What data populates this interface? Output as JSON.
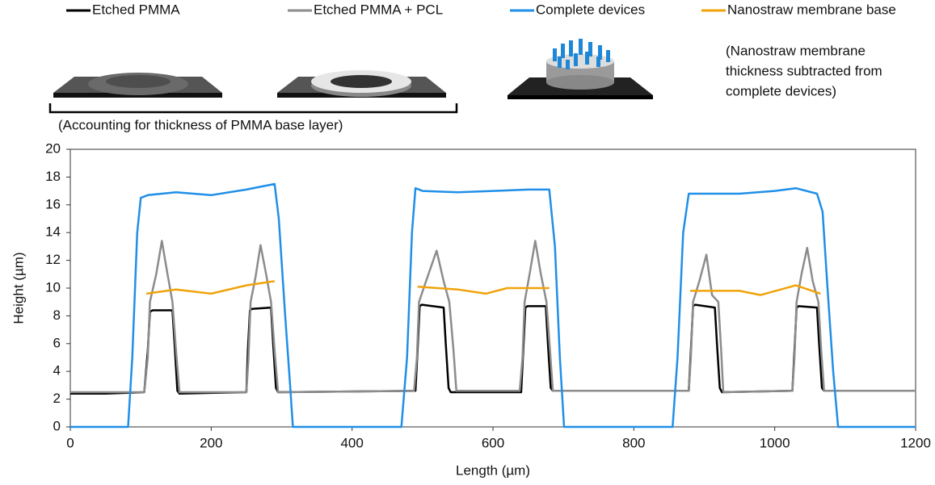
{
  "chart_data": {
    "type": "line",
    "xlabel": "Length (µm)",
    "ylabel": "Height (µm)",
    "annotations": [
      "(Accounting for thickness of PMMA base layer)",
      "(Nanostraw membrane",
      "thickness subtracted from",
      "complete devices)"
    ],
    "xlim": [
      0,
      1200
    ],
    "xticks": [
      0,
      200,
      400,
      600,
      800,
      1000,
      1200
    ],
    "ylim": [
      0,
      20
    ],
    "yticks": [
      0,
      2,
      4,
      6,
      8,
      10,
      12,
      14,
      16,
      18,
      20
    ],
    "series": [
      {
        "name": "Etched PMMA",
        "color": "#000000",
        "x": [
          0,
          50,
          105,
          110,
          113,
          117,
          145,
          148,
          152,
          155,
          250,
          252,
          255,
          258,
          285,
          288,
          292,
          295,
          490,
          493,
          496,
          499,
          530,
          533,
          537,
          540,
          640,
          643,
          646,
          649,
          675,
          678,
          682,
          685,
          878,
          881,
          884,
          887,
          915,
          918,
          922,
          925,
          1025,
          1028,
          1031,
          1034,
          1060,
          1063,
          1067,
          1070,
          1200
        ],
        "values": [
          2.4,
          2.4,
          2.5,
          5.5,
          8.3,
          8.4,
          8.4,
          6,
          2.6,
          2.4,
          2.5,
          5.5,
          8.4,
          8.5,
          8.6,
          6,
          2.8,
          2.5,
          2.6,
          5.5,
          8.7,
          8.8,
          8.6,
          6,
          2.8,
          2.5,
          2.5,
          5.5,
          8.6,
          8.7,
          8.7,
          6,
          2.8,
          2.6,
          2.6,
          5.5,
          8.7,
          8.8,
          8.6,
          6,
          2.8,
          2.5,
          2.6,
          5.5,
          8.6,
          8.7,
          8.6,
          6,
          2.8,
          2.6,
          2.6
        ]
      },
      {
        "name": "Etched PMMA + PCL",
        "color": "#8c8c8c",
        "x": [
          0,
          105,
          110,
          113,
          122,
          130,
          138,
          145,
          150,
          155,
          250,
          253,
          256,
          263,
          270,
          278,
          285,
          290,
          295,
          488,
          492,
          495,
          505,
          520,
          530,
          538,
          544,
          548,
          638,
          642,
          645,
          652,
          660,
          668,
          676,
          681,
          685,
          878,
          881,
          884,
          893,
          903,
          911,
          920,
          924,
          927,
          1025,
          1028,
          1031,
          1038,
          1046,
          1054,
          1062,
          1066,
          1070,
          1200
        ],
        "values": [
          2.5,
          2.5,
          5,
          9,
          11,
          13.4,
          11,
          9,
          5.5,
          2.5,
          2.5,
          5,
          9,
          10.8,
          13.1,
          11,
          9,
          5.5,
          2.5,
          2.6,
          5,
          9,
          10.5,
          12.7,
          10.5,
          9,
          5.5,
          2.6,
          2.6,
          5,
          9,
          11,
          13.4,
          11,
          9,
          5.5,
          2.6,
          2.6,
          5,
          9,
          10.5,
          12.4,
          9.5,
          9,
          5.5,
          2.5,
          2.6,
          5,
          9,
          11,
          12.9,
          10.5,
          9,
          5.5,
          2.6,
          2.6
        ]
      },
      {
        "name": "Complete devices",
        "color": "#1f8fe8",
        "x": [
          0,
          82,
          88,
          95,
          100,
          110,
          150,
          200,
          250,
          270,
          290,
          296,
          305,
          312,
          316,
          470,
          478,
          485,
          490,
          500,
          550,
          600,
          650,
          680,
          688,
          695,
          701,
          855,
          862,
          870,
          878,
          900,
          950,
          1000,
          1030,
          1060,
          1068,
          1075,
          1083,
          1090,
          1200
        ],
        "values": [
          0,
          0,
          5,
          14,
          16.5,
          16.7,
          16.9,
          16.7,
          17.1,
          17.3,
          17.5,
          15,
          8,
          3,
          0,
          0,
          5,
          14,
          17.2,
          17,
          16.9,
          17,
          17.1,
          17.1,
          13,
          5,
          0,
          0,
          5,
          14,
          16.8,
          16.8,
          16.8,
          17,
          17.2,
          16.8,
          15.5,
          10,
          4,
          0,
          0
        ]
      },
      {
        "name": "Nanostraw membrane base",
        "color": "#f0a30a",
        "x": [
          108,
          150,
          200,
          250,
          290,
          null,
          493,
          550,
          590,
          620,
          680,
          null,
          880,
          950,
          980,
          1030,
          1065
        ],
        "values": [
          9.6,
          9.9,
          9.6,
          10.2,
          10.5,
          null,
          10.1,
          9.9,
          9.6,
          10,
          10,
          null,
          9.8,
          9.8,
          9.5,
          10.2,
          9.6
        ]
      }
    ]
  }
}
